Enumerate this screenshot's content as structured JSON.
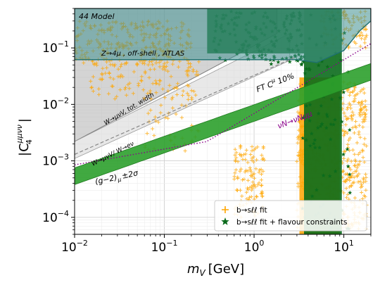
{
  "chart_data": {
    "type": "scatter",
    "title": "",
    "model_label": "44 Model",
    "xlabel_main": "m",
    "xlabel_sub": "V",
    "xlabel_unit": "[GeV]",
    "ylabel_main": "|C",
    "ylabel_sub": "4",
    "ylabel_sup": "μμνν",
    "ylabel_close": "|",
    "xscale": "log",
    "yscale": "log",
    "xlim": [
      0.01,
      20
    ],
    "ylim": [
      5e-05,
      0.5
    ],
    "grid": true,
    "legend_position": "bottom-right",
    "x_ticks": [
      {
        "value": 0.01,
        "base": "10",
        "exp": "−2"
      },
      {
        "value": 0.1,
        "base": "10",
        "exp": "−1"
      },
      {
        "value": 1,
        "base": "10",
        "exp": "0"
      },
      {
        "value": 10,
        "base": "10",
        "exp": "1"
      }
    ],
    "y_ticks": [
      {
        "value": 0.0001,
        "base": "10",
        "exp": "−4"
      },
      {
        "value": 0.001,
        "base": "10",
        "exp": "−3"
      },
      {
        "value": 0.01,
        "base": "10",
        "exp": "−2"
      },
      {
        "value": 0.1,
        "base": "10",
        "exp": "−1"
      }
    ],
    "regions": [
      {
        "name": "Z→4μ , off-shell , ATLAS",
        "color": "#2a8080"
      },
      {
        "name": "W→μνV, tot. width",
        "color": "#b4b4b4"
      },
      {
        "name": "W→μνV/ W→eν",
        "color": "#c8c8c8"
      },
      {
        "name": "FT C^μ 10%",
        "color": "#888888"
      },
      {
        "name": "(g−2)μ ±2σ",
        "color": "#2ca02c"
      },
      {
        "name": "νN→νNμμ",
        "color": "#8b008b"
      }
    ],
    "series": [
      {
        "name": "b→sℓℓ fit",
        "marker": "plus",
        "color": "#ffa500"
      },
      {
        "name": "b→sℓℓ fit + flavour constraints",
        "marker": "star",
        "color": "#006400"
      }
    ],
    "annotations": {
      "z4mu": "Z→4μ , off-shell , ATLAS",
      "w_width": "W→μνV, tot. width",
      "w_ratio": "W→μνV/ W→eν",
      "ft": "FT C",
      "ft_sup": "μ",
      "ft_pct": "10%",
      "g2": "(g−2)",
      "g2_sub": "μ",
      "g2_pm": "±2σ",
      "nu": "νN→νNμμ"
    },
    "colors": {
      "orange": "#ffa500",
      "dark_green": "#0b6b1c",
      "green_band": "#2ca02c",
      "teal": "#3f8f8f",
      "purple": "#8b008b"
    }
  }
}
